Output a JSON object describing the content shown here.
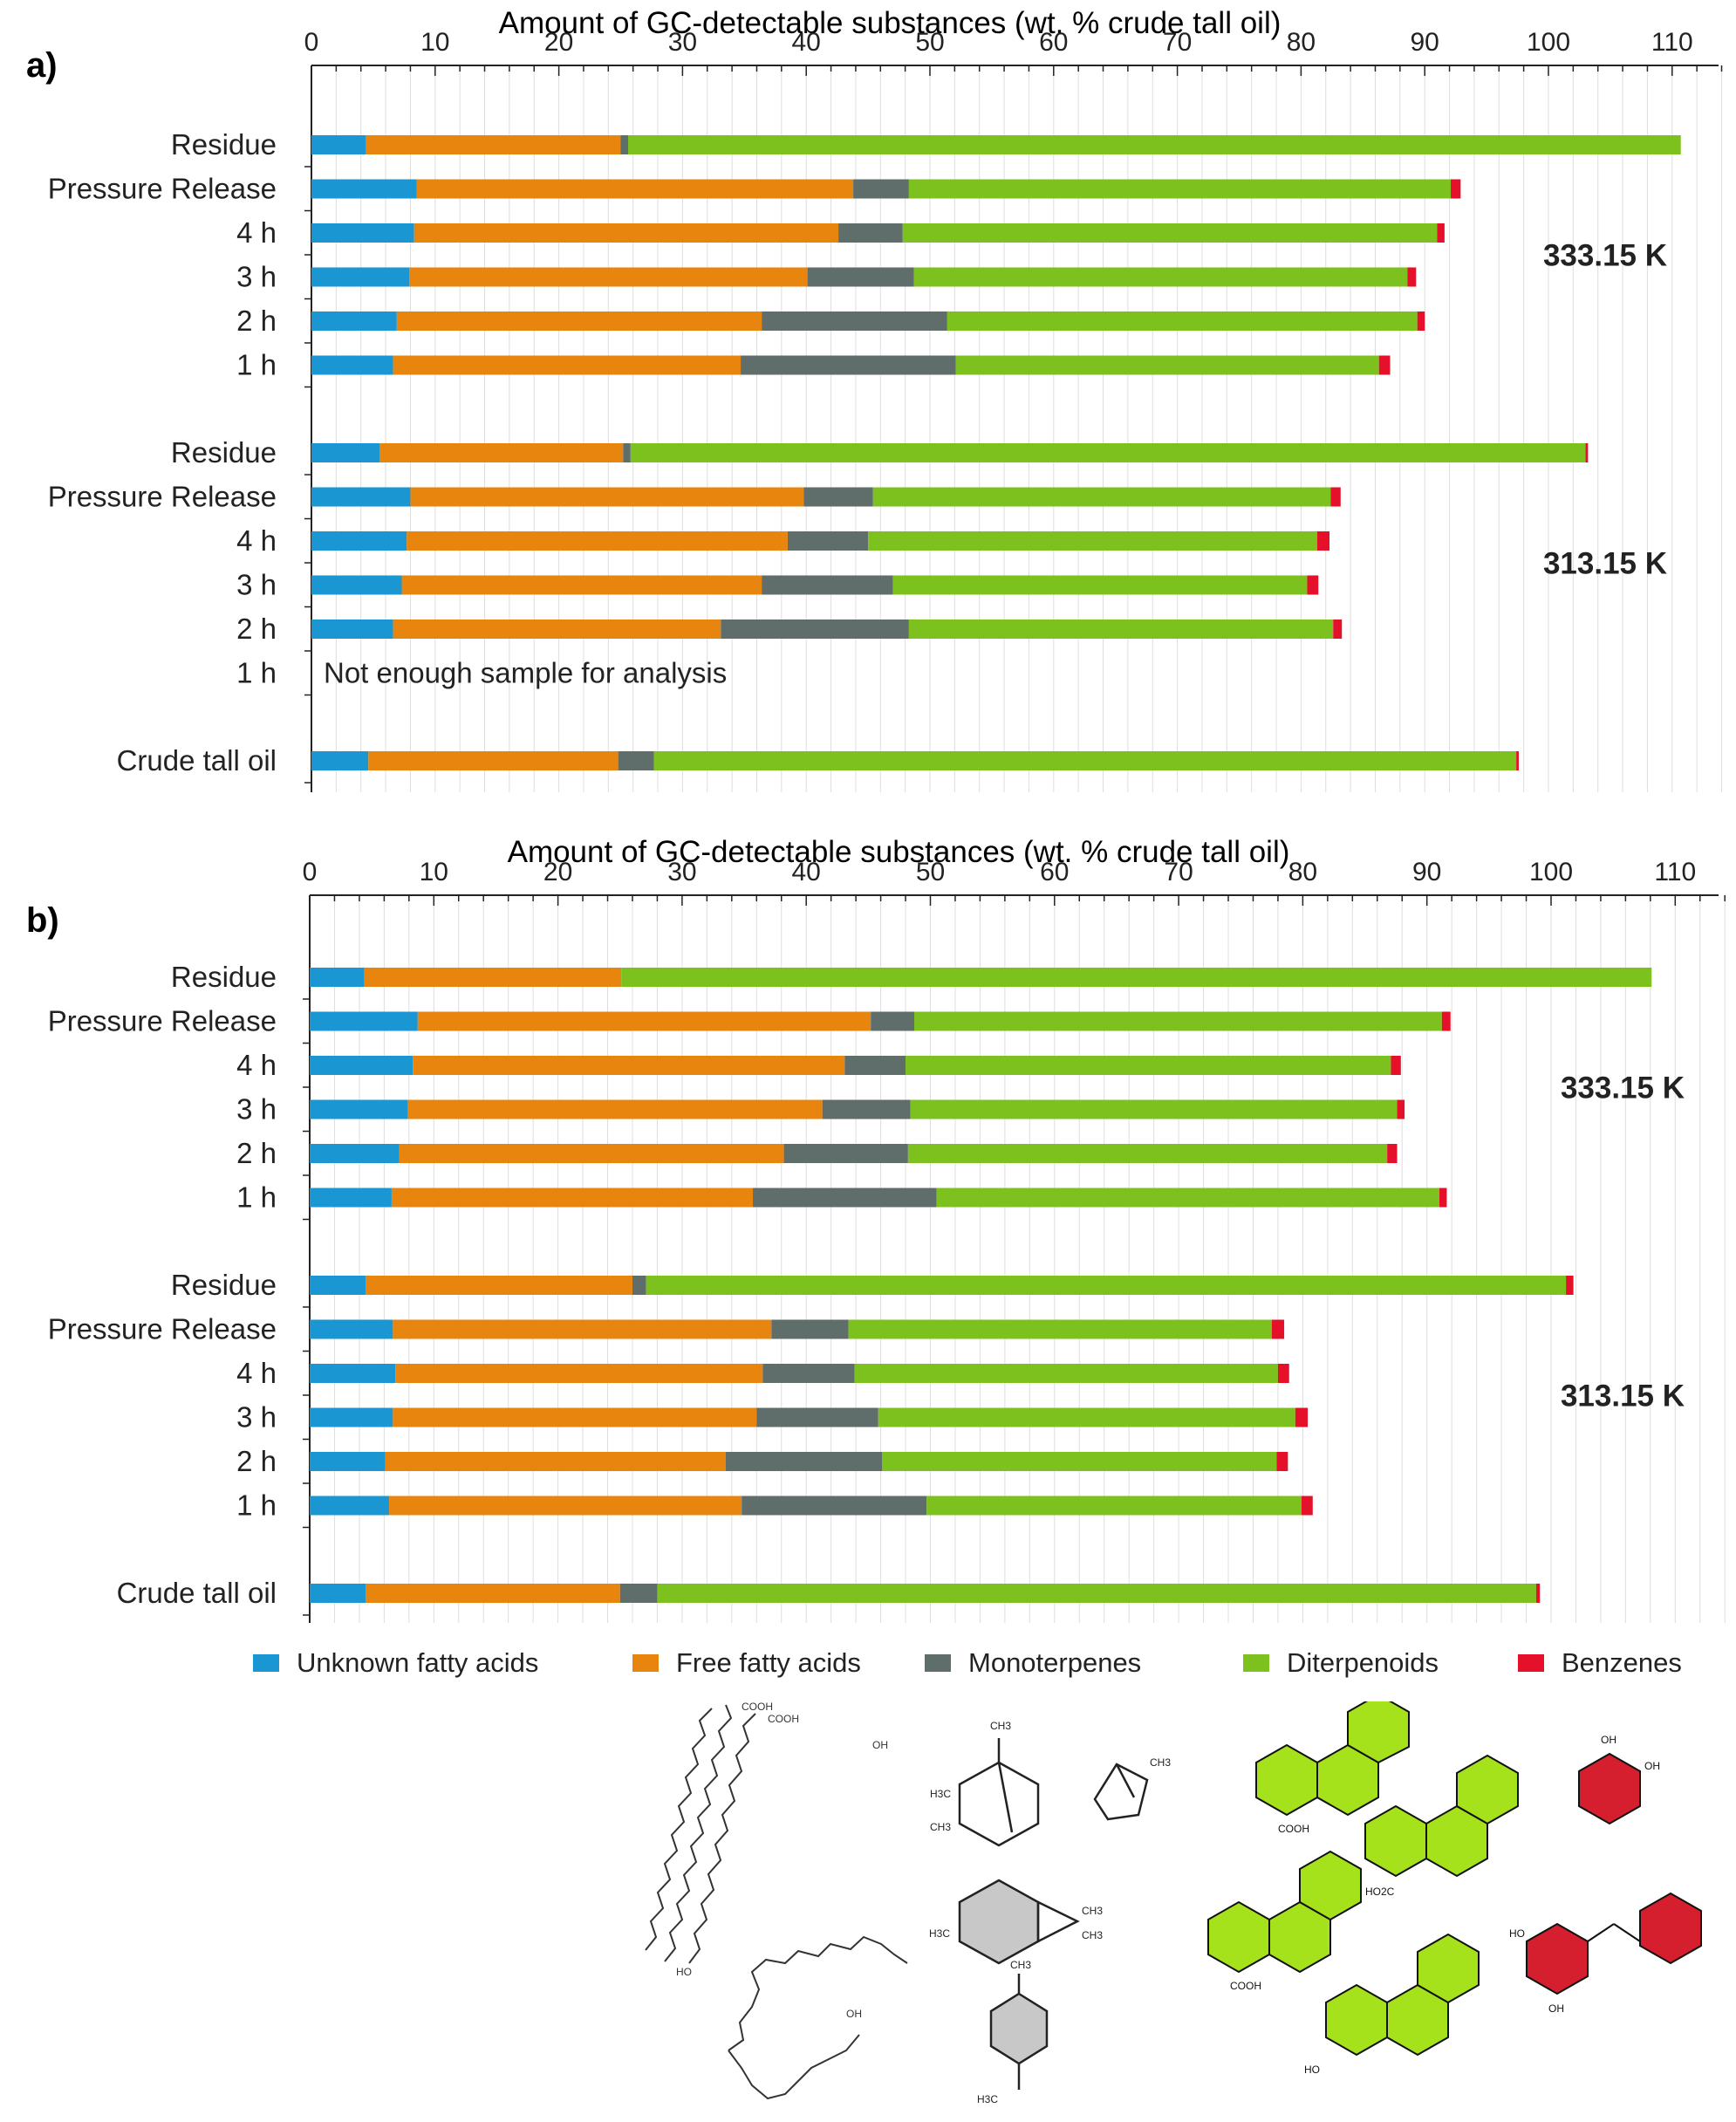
{
  "chart_data": [
    {
      "type": "bar",
      "orientation": "horizontal",
      "stacked": true,
      "panel_label": "a)",
      "title": "Amount of GC-detectable substances (wt. % crude tall oil)",
      "xlabel": "Amount of GC-detectable substances (wt. % crude tall oil)",
      "xlim": [
        0,
        115
      ],
      "xticks": [
        "0",
        "10",
        "20",
        "30",
        "40",
        "50",
        "60",
        "70",
        "80",
        "90",
        "100",
        "110"
      ],
      "grid": "vertical minor gridlines",
      "groups": [
        {
          "label": "333.15 K",
          "rows": [
            0,
            1,
            2,
            3,
            4,
            5
          ]
        },
        {
          "label": "313.15 K",
          "rows": [
            6,
            7,
            8,
            9,
            10,
            11
          ]
        },
        {
          "label": "",
          "rows": [
            12
          ]
        }
      ],
      "categories": [
        "Residue",
        "Pressure Release",
        "4 h",
        "3 h",
        "2 h",
        "1 h",
        "Residue",
        "Pressure Release",
        "4 h",
        "3 h",
        "2 h",
        "1 h",
        "Crude tall oil"
      ],
      "annotations": [
        {
          "row": 11,
          "text": "Not enough sample for analysis"
        }
      ],
      "series": [
        {
          "name": "Unknown fatty acids",
          "color": "#1a96d2",
          "values": [
            4.4,
            8.5,
            8.3,
            7.9,
            6.9,
            6.6,
            5.5,
            8.0,
            7.7,
            7.3,
            6.6,
            null,
            4.6
          ]
        },
        {
          "name": "Free fatty acids",
          "color": "#e8850e",
          "values": [
            20.6,
            35.3,
            34.3,
            32.2,
            29.5,
            28.1,
            19.7,
            31.8,
            30.8,
            29.1,
            26.5,
            null,
            20.2
          ]
        },
        {
          "name": "Monoterpenes",
          "color": "#5f6e6a",
          "values": [
            0.6,
            4.5,
            5.2,
            8.6,
            15.0,
            17.4,
            0.6,
            5.6,
            6.5,
            10.6,
            15.2,
            null,
            2.9
          ]
        },
        {
          "name": "Diterpenoids",
          "color": "#7dc11f",
          "values": [
            85.1,
            43.8,
            43.2,
            39.9,
            38.0,
            34.2,
            77.2,
            37.0,
            36.3,
            33.5,
            34.3,
            null,
            69.7
          ]
        },
        {
          "name": "Benzenes",
          "color": "#e5112a",
          "values": [
            0.0,
            0.8,
            0.6,
            0.7,
            0.6,
            0.9,
            0.2,
            0.8,
            1.0,
            0.9,
            0.7,
            null,
            0.2
          ]
        }
      ]
    },
    {
      "type": "bar",
      "orientation": "horizontal",
      "stacked": true,
      "panel_label": "b)",
      "title": "Amount of GC-detectable substances (wt. % crude tall oil)",
      "xlabel": "Amount of GC-detectable substances (wt. % crude tall oil)",
      "xlim": [
        0,
        114
      ],
      "xticks": [
        "0",
        "10",
        "20",
        "30",
        "40",
        "50",
        "60",
        "70",
        "80",
        "90",
        "100",
        "110"
      ],
      "grid": "vertical minor gridlines",
      "groups": [
        {
          "label": "333.15 K",
          "rows": [
            0,
            1,
            2,
            3,
            4,
            5
          ]
        },
        {
          "label": "313.15 K",
          "rows": [
            6,
            7,
            8,
            9,
            10,
            11
          ]
        },
        {
          "label": "",
          "rows": [
            12
          ]
        }
      ],
      "categories": [
        "Residue",
        "Pressure Release",
        "4 h",
        "3 h",
        "2 h",
        "1 h",
        "Residue",
        "Pressure Release",
        "4 h",
        "3 h",
        "2 h",
        "1 h",
        "Crude tall oil"
      ],
      "annotations": [],
      "series": [
        {
          "name": "Unknown fatty acids",
          "color": "#1a96d2",
          "values": [
            4.4,
            8.7,
            8.3,
            7.9,
            7.2,
            6.6,
            4.5,
            6.7,
            6.9,
            6.7,
            6.1,
            6.4,
            4.5
          ]
        },
        {
          "name": "Free fatty acids",
          "color": "#e8850e",
          "values": [
            20.7,
            36.5,
            34.8,
            33.4,
            31.0,
            29.1,
            21.5,
            30.5,
            29.6,
            29.3,
            27.4,
            28.4,
            20.5
          ]
        },
        {
          "name": "Monoterpenes",
          "color": "#5f6e6a",
          "values": [
            0.0,
            3.5,
            4.9,
            7.1,
            10.0,
            14.8,
            1.1,
            6.2,
            7.4,
            9.8,
            12.6,
            14.9,
            3.0
          ]
        },
        {
          "name": "Diterpenoids",
          "color": "#7dc11f",
          "values": [
            83.0,
            42.5,
            39.1,
            39.2,
            38.6,
            40.5,
            74.1,
            34.1,
            34.1,
            33.6,
            31.8,
            30.2,
            70.8
          ]
        },
        {
          "name": "Benzenes",
          "color": "#e5112a",
          "values": [
            0.0,
            0.7,
            0.8,
            0.6,
            0.8,
            0.6,
            0.6,
            1.0,
            0.9,
            1.0,
            0.9,
            0.9,
            0.3
          ]
        }
      ]
    }
  ],
  "legend": {
    "placement": "bottom",
    "items": [
      {
        "label": "Unknown fatty acids",
        "color": "#1a96d2"
      },
      {
        "label": "Free fatty acids",
        "color": "#e8850e"
      },
      {
        "label": "Monoterpenes",
        "color": "#5f6e6a"
      },
      {
        "label": "Diterpenoids",
        "color": "#7dc11f"
      },
      {
        "label": "Benzenes",
        "color": "#e5112a"
      }
    ]
  },
  "structures": {
    "fatty_acid_labels": [
      "COOH",
      "COOH",
      "OH",
      "HO",
      "OH"
    ],
    "terpene_labels": [
      "CH3",
      "H3C",
      "CH3",
      "CH3",
      "CH3",
      "CH3",
      "H3C",
      "CH3",
      "H3C"
    ],
    "diterpenoid_labels": [
      "COOH",
      "HO2C",
      "COOH",
      "HO"
    ],
    "benzene_labels": [
      "OH",
      "OH",
      "HO",
      "OH"
    ]
  }
}
